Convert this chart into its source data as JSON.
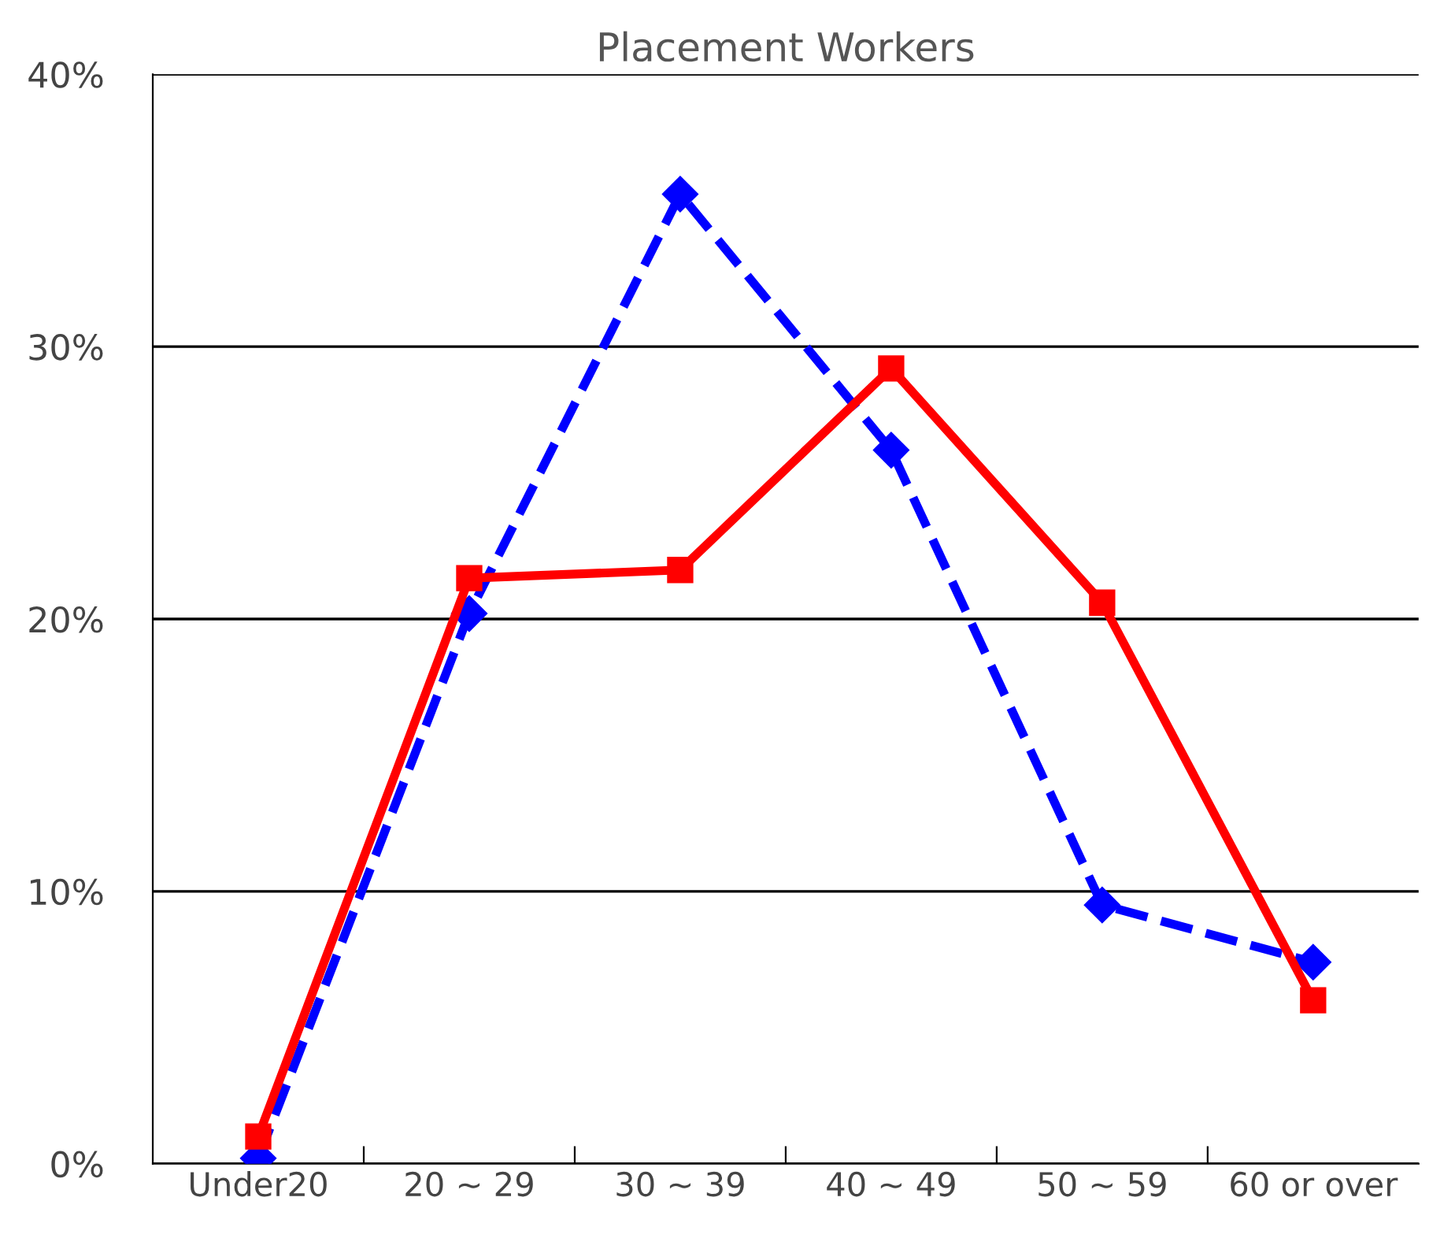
{
  "chart_data": {
    "type": "line",
    "title": "Placement Workers",
    "categories": [
      "Under20",
      "20 ~ 29",
      "30 ~ 39",
      "40 ~ 49",
      "50 ~ 59",
      "60 or over"
    ],
    "series": [
      {
        "color": "#0000ff",
        "values": [
          0.2,
          20.2,
          35.6,
          26.2,
          9.5,
          7.4
        ],
        "marker": "diamond",
        "line_style": "dashed"
      },
      {
        "color": "#ff0000",
        "values": [
          1.0,
          21.5,
          21.8,
          29.2,
          20.6,
          6.0
        ],
        "marker": "square",
        "line_style": "solid"
      }
    ],
    "ylim": [
      0,
      40
    ],
    "yticks": [
      {
        "value": 0,
        "label": "0%"
      },
      {
        "value": 10,
        "label": "10%"
      },
      {
        "value": 20,
        "label": "20%"
      },
      {
        "value": 30,
        "label": "30%"
      },
      {
        "value": 40,
        "label": "40%"
      }
    ],
    "grid": "y",
    "legend": false
  }
}
